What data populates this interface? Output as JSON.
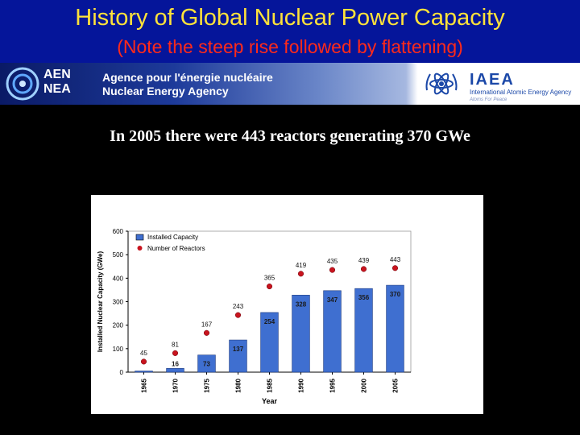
{
  "slide": {
    "title": "History of Global Nuclear Power Capacity",
    "subtitle": "(Note the steep rise followed by flattening)",
    "caption": "In 2005 there were 443 reactors generating 370 GWe"
  },
  "banner": {
    "nea_abbr_1": "AEN",
    "nea_abbr_2": "NEA",
    "nea_name_fr": "Agence pour l'énergie nucléaire",
    "nea_name_en": "Nuclear Energy Agency",
    "iaea_abbr": "IAEA",
    "iaea_full": "International Atomic Energy Agency",
    "iaea_motto": "Atoms For Peace"
  },
  "colors": {
    "header_bg": "#05159a",
    "title": "#ffe23a",
    "subtitle": "#ff2a1a",
    "bar": "#3f6fd0",
    "marker": "#c8141e"
  },
  "chart_data": {
    "type": "bar",
    "categories": [
      "1965",
      "1970",
      "1975",
      "1980",
      "1985",
      "1990",
      "1995",
      "2000",
      "2005"
    ],
    "series": [
      {
        "name": "Installed Capacity",
        "kind": "bar",
        "values": [
          5,
          16,
          73,
          137,
          254,
          328,
          347,
          356,
          370
        ],
        "labels": [
          "",
          "16",
          "73",
          "137",
          "254",
          "328",
          "347",
          "356",
          "370"
        ]
      },
      {
        "name": "Number of Reactors",
        "kind": "marker",
        "values": [
          45,
          81,
          167,
          243,
          365,
          419,
          435,
          439,
          443
        ],
        "labels": [
          "45",
          "81",
          "167",
          "243",
          "365",
          "419",
          "435",
          "439",
          "443"
        ]
      }
    ],
    "xlabel": "Year",
    "ylabel": "Installed Nuclear Capacity (GWe)",
    "ylim": [
      0,
      600
    ],
    "yticks": [
      "0",
      "100",
      "200",
      "300",
      "400",
      "500",
      "600"
    ],
    "grid": false,
    "legend": "top-left"
  }
}
